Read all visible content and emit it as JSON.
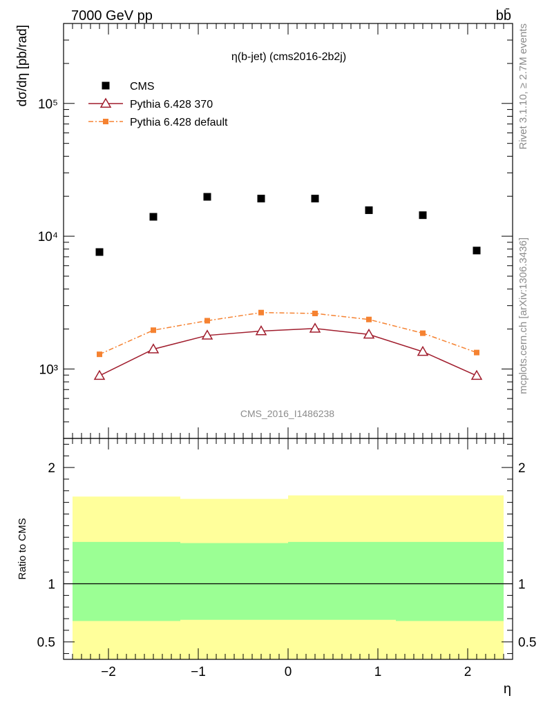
{
  "header": {
    "left_label": "7000 GeV pp",
    "right_label": "bb̄"
  },
  "side_labels": {
    "rivet": "Rivet 3.1.10, ≥ 2.7M events",
    "mcplots": "mcplots.cern.ch [arXiv:1306.3436]"
  },
  "chart_data": [
    {
      "type": "scatter",
      "title": "η(b-jet) (cms2016-2b2j)",
      "watermark": "CMS_2016_I1486238",
      "ylabel": "dσ/dη [pb/rad]",
      "xlim": [
        -2.5,
        2.5
      ],
      "ylim": [
        300,
        400000
      ],
      "yscale": "log",
      "ytick_labels": [
        "10³",
        "10⁴",
        "10⁵"
      ],
      "ytick_values": [
        1000,
        10000,
        100000
      ],
      "legend_position": "top-left",
      "x": [
        -2.1,
        -1.5,
        -0.9,
        -0.3,
        0.3,
        0.9,
        1.5,
        2.1
      ],
      "series": [
        {
          "name": "CMS",
          "marker": "square",
          "color": "#000000",
          "values": [
            7600,
            14000,
            19800,
            19200,
            19200,
            15700,
            14400,
            7800
          ]
        },
        {
          "name": "Pythia 6.428 370",
          "marker": "open-triangle",
          "line": "solid",
          "color": "#a01c2c",
          "values": [
            890,
            1410,
            1790,
            1930,
            2020,
            1820,
            1350,
            890
          ]
        },
        {
          "name": "Pythia 6.428 default",
          "marker": "small-square",
          "line": "dash-dot",
          "color": "#f58231",
          "values": [
            1290,
            1960,
            2310,
            2660,
            2620,
            2360,
            1860,
            1330
          ]
        }
      ]
    },
    {
      "type": "area",
      "ylabel": "Ratio to CMS",
      "xlabel": "η",
      "xlim": [
        -2.5,
        2.5
      ],
      "ylim": [
        0.35,
        2.25
      ],
      "ytick_labels": [
        "0.5",
        "1",
        "2"
      ],
      "ytick_values": [
        0.5,
        1,
        2
      ],
      "xtick_labels": [
        "−2",
        "−1",
        "0",
        "1",
        "2"
      ],
      "xtick_values": [
        -2,
        -1,
        0,
        1,
        2
      ],
      "reference_line": 1,
      "bins": [
        {
          "x0": -2.4,
          "x1": -1.2,
          "green": [
            0.68,
            1.36
          ],
          "yellow": [
            0.35,
            1.75
          ]
        },
        {
          "x0": -1.2,
          "x1": 0.0,
          "green": [
            0.69,
            1.35
          ],
          "yellow": [
            0.35,
            1.73
          ]
        },
        {
          "x0": 0.0,
          "x1": 1.2,
          "green": [
            0.69,
            1.36
          ],
          "yellow": [
            0.35,
            1.76
          ]
        },
        {
          "x0": 1.2,
          "x1": 2.4,
          "green": [
            0.68,
            1.36
          ],
          "yellow": [
            0.35,
            1.76
          ]
        }
      ],
      "band_colors": {
        "inner": "#9bff94",
        "outer": "#ffff9b"
      }
    }
  ]
}
